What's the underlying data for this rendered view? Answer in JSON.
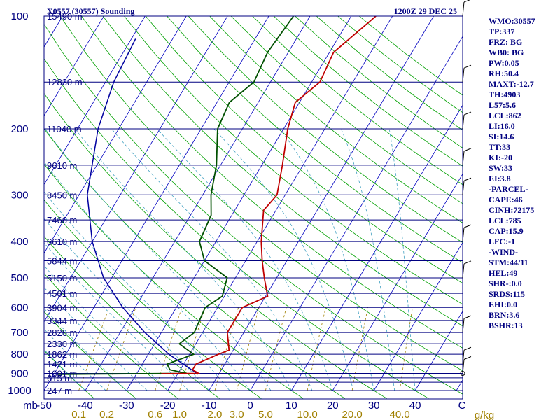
{
  "header": {
    "station": "X0557 (30557) Sounding",
    "time": "1200Z 29 DEC 25"
  },
  "colors": {
    "frame": "#000080",
    "isotherm": "#0000c0",
    "dry_adiabat": "#00a000",
    "moist_adiabat": "#40a0c0",
    "mixing_ratio": "#a08000",
    "temperature": "#c00000",
    "dewpoint": "#005000",
    "parcel": "#0000a0"
  },
  "indices": [
    "WMO:30557",
    "TP:337",
    "FRZ: BG",
    "WB0: BG",
    "PW:0.05",
    "RH:50.4",
    "MAXT:-12.7",
    "TH:4903",
    "L57:5.6",
    "LCL:862",
    "LI:16.0",
    "SI:14.6",
    "TT:33",
    "KI:-20",
    "SW:33",
    "EI:3.8",
    "-PARCEL-",
    "CAPE:46",
    "CINH:72175",
    "LCL:785",
    "CAP:15.9",
    "LFC:-1",
    "-WIND-",
    "STM:44/11",
    "HEL:49",
    "SHR-:0.0",
    "SRDS:115",
    "EHI:0.0",
    "BRN:3.6",
    "BSHR:13"
  ],
  "chart_data": {
    "type": "skew-t",
    "title": "X0557 (30557) Sounding",
    "pressure_axis_unit": "mb",
    "pressure_ticks": [
      "100",
      "200",
      "300",
      "400",
      "500",
      "600",
      "700",
      "800",
      "900",
      "1000"
    ],
    "pressure_ticks_values": [
      100,
      200,
      300,
      400,
      500,
      600,
      700,
      800,
      900,
      1000
    ],
    "height_levels": [
      {
        "p": 100,
        "label": "15490 m"
      },
      {
        "p": 150,
        "label": "12830 m"
      },
      {
        "p": 200,
        "label": "11040 m"
      },
      {
        "p": 250,
        "label": "9610 m"
      },
      {
        "p": 300,
        "label": "8450 m"
      },
      {
        "p": 350,
        "label": "7466 m"
      },
      {
        "p": 400,
        "label": "6610 m"
      },
      {
        "p": 450,
        "label": "5844 m"
      },
      {
        "p": 500,
        "label": "5150 m"
      },
      {
        "p": 550,
        "label": "4501 m"
      },
      {
        "p": 600,
        "label": "3904 m"
      },
      {
        "p": 650,
        "label": "3344 m"
      },
      {
        "p": 700,
        "label": "2826 m"
      },
      {
        "p": 750,
        "label": "2330 m"
      },
      {
        "p": 800,
        "label": "1862 m"
      },
      {
        "p": 850,
        "label": "1421 m"
      },
      {
        "p": 900,
        "label": "1001 m"
      },
      {
        "p": 925,
        "label": "615 m"
      },
      {
        "p": 1000,
        "label": "247 m"
      }
    ],
    "temperature_axis_unit": "C",
    "temperature_ticks": [
      "-50",
      "-40",
      "-30",
      "-20",
      "-10",
      "0",
      "10",
      "20",
      "30",
      "40"
    ],
    "temperature_ticks_values": [
      -50,
      -40,
      -30,
      -20,
      -10,
      0,
      10,
      20,
      30,
      40
    ],
    "mixing_ratio_unit": "g/kg",
    "mixing_ratio_ticks": [
      "0.1",
      "0.2",
      "0.6",
      "1.0",
      "2.0",
      "3.0",
      "5.0",
      "10.0",
      "20.0",
      "40.0"
    ],
    "mixing_ratio_ticks_values": [
      0.1,
      0.2,
      0.6,
      1.0,
      2.0,
      3.0,
      5.0,
      10.0,
      20.0,
      40.0
    ],
    "temperature_profile": [
      {
        "p": 902,
        "t": -24.0
      },
      {
        "p": 900,
        "t": -15.0
      },
      {
        "p": 880,
        "t": -17.0
      },
      {
        "p": 850,
        "t": -17.0
      },
      {
        "p": 800,
        "t": -13.0
      },
      {
        "p": 780,
        "t": -11.0
      },
      {
        "p": 700,
        "t": -14.0
      },
      {
        "p": 600,
        "t": -14.0
      },
      {
        "p": 560,
        "t": -9.5
      },
      {
        "p": 500,
        "t": -13.0
      },
      {
        "p": 450,
        "t": -16.0
      },
      {
        "p": 400,
        "t": -19.0
      },
      {
        "p": 330,
        "t": -23.0
      },
      {
        "p": 300,
        "t": -22.0
      },
      {
        "p": 250,
        "t": -25.0
      },
      {
        "p": 200,
        "t": -29.0
      },
      {
        "p": 170,
        "t": -31.0
      },
      {
        "p": 150,
        "t": -28.0
      },
      {
        "p": 125,
        "t": -29.0
      },
      {
        "p": 100,
        "t": -24.0
      }
    ],
    "dewpoint_profile": [
      {
        "p": 905,
        "t": -49.0
      },
      {
        "p": 900,
        "t": -18.0
      },
      {
        "p": 880,
        "t": -22.5
      },
      {
        "p": 850,
        "t": -24.0
      },
      {
        "p": 800,
        "t": -19.0
      },
      {
        "p": 750,
        "t": -24.0
      },
      {
        "p": 700,
        "t": -22.0
      },
      {
        "p": 600,
        "t": -23.0
      },
      {
        "p": 560,
        "t": -20.5
      },
      {
        "p": 500,
        "t": -22.0
      },
      {
        "p": 450,
        "t": -30.0
      },
      {
        "p": 400,
        "t": -34.0
      },
      {
        "p": 340,
        "t": -35.0
      },
      {
        "p": 300,
        "t": -38.0
      },
      {
        "p": 250,
        "t": -41.0
      },
      {
        "p": 200,
        "t": -46.0
      },
      {
        "p": 170,
        "t": -47.0
      },
      {
        "p": 150,
        "t": -44.0
      },
      {
        "p": 125,
        "t": -45.0
      },
      {
        "p": 100,
        "t": -44.0
      }
    ],
    "parcel_profile": [
      {
        "p": 905,
        "t": -15.0
      },
      {
        "p": 800,
        "t": -25.0
      },
      {
        "p": 700,
        "t": -34.0
      },
      {
        "p": 600,
        "t": -43.0
      },
      {
        "p": 500,
        "t": -52.0
      },
      {
        "p": 400,
        "t": -60.0
      },
      {
        "p": 300,
        "t": -68.0
      },
      {
        "p": 200,
        "t": -75.0
      },
      {
        "p": 150,
        "t": -78.0
      },
      {
        "p": 115,
        "t": -79.0
      }
    ],
    "wind_barbs_pressure": [
      100,
      150,
      200,
      250,
      300,
      400,
      500,
      700,
      850,
      900
    ]
  }
}
